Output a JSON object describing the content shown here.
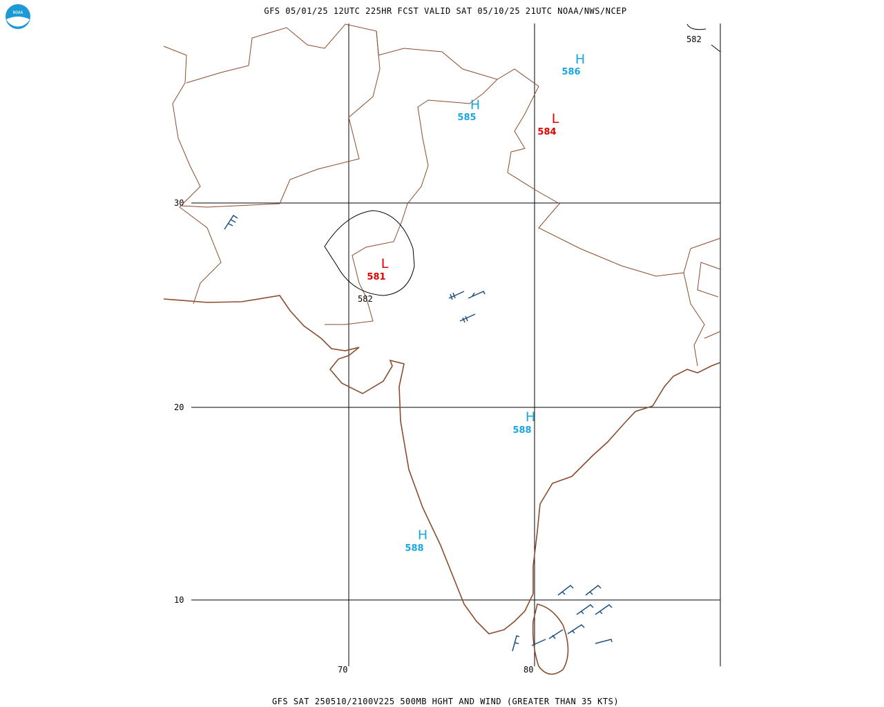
{
  "header": {
    "title": "GFS 05/01/25 12UTC 225HR FCST VALID SAT 05/10/25 21UTC NOAA/NWS/NCEP",
    "logo": "NOAA"
  },
  "footer": {
    "caption": "GFS SAT 250510/2100V225 500MB HGHT AND WIND (GREATER THAN 35 KTS)"
  },
  "grid": {
    "lat_labels": [
      "30",
      "20",
      "10"
    ],
    "lon_labels": [
      "70",
      "80"
    ]
  },
  "centers": [
    {
      "symbol": "H",
      "value": "586"
    },
    {
      "symbol": "H",
      "value": "585"
    },
    {
      "symbol": "L",
      "value": "584"
    },
    {
      "symbol": "L",
      "value": "581"
    },
    {
      "symbol": "H",
      "value": "588"
    },
    {
      "symbol": "H",
      "value": "588"
    }
  ],
  "contour_labels": [
    "582",
    "582"
  ]
}
